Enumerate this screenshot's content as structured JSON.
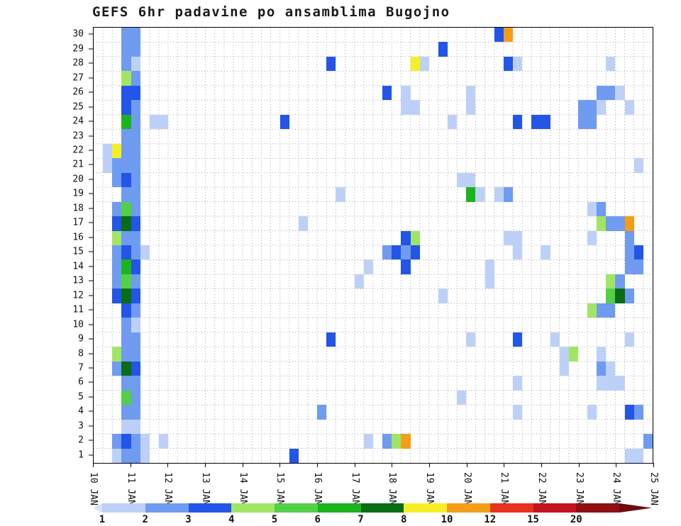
{
  "chart_data": {
    "type": "heatmap",
    "title": "GEFS 6hr padavine po ansamblima Bugojno",
    "x_axis": {
      "tick_labels": [
        "10 JAN",
        "11 JAN",
        "12 JAN",
        "13 JAN",
        "14 JAN",
        "15 JAN",
        "16 JAN",
        "17 JAN",
        "18 JAN",
        "19 JAN",
        "20 JAN",
        "21 JAN",
        "22 JAN",
        "23 JAN",
        "24 JAN",
        "25 JAN"
      ],
      "steps_per_day": 4,
      "n_cols": 60
    },
    "y_axis": {
      "tick_labels": [
        "30",
        "29",
        "28",
        "27",
        "26",
        "25",
        "24",
        "23",
        "22",
        "21",
        "20",
        "19",
        "18",
        "17",
        "16",
        "15",
        "14",
        "13",
        "12",
        "11",
        "10",
        "9",
        "8",
        "7",
        "6",
        "5",
        "4",
        "3",
        "2",
        "1"
      ],
      "n_rows": 30,
      "meaning": "ensemble member"
    },
    "legend": {
      "tick_labels": [
        "1",
        "2",
        "3",
        "4",
        "5",
        "6",
        "7",
        "8",
        "10",
        "12",
        "15",
        "20"
      ],
      "bin_values": [
        1,
        2,
        3,
        4,
        5,
        6,
        7,
        8,
        10,
        12,
        15,
        20
      ],
      "segment_colors": [
        "#bdd1f8",
        "#6f9bf0",
        "#2255e8",
        "#a0e664",
        "#52d048",
        "#1cb41e",
        "#0a6c14",
        "#f6ef26",
        "#f59d18",
        "#e8321e",
        "#c41420",
        "#8f0f14"
      ],
      "cap_left_color": "#d7e3fa",
      "cap_right_color": "#6e0a10"
    },
    "cells": [
      [
        30,
        3,
        2
      ],
      [
        30,
        4,
        2
      ],
      [
        30,
        43,
        3
      ],
      [
        30,
        44,
        10
      ],
      [
        29,
        3,
        2
      ],
      [
        29,
        4,
        2
      ],
      [
        29,
        37,
        3
      ],
      [
        28,
        3,
        2
      ],
      [
        28,
        4,
        1
      ],
      [
        28,
        25,
        3
      ],
      [
        28,
        34,
        8
      ],
      [
        28,
        35,
        1
      ],
      [
        28,
        44,
        3
      ],
      [
        28,
        45,
        1
      ],
      [
        28,
        55,
        1
      ],
      [
        27,
        3,
        4
      ],
      [
        27,
        4,
        2
      ],
      [
        26,
        3,
        3
      ],
      [
        26,
        4,
        3
      ],
      [
        26,
        31,
        3
      ],
      [
        26,
        33,
        1
      ],
      [
        26,
        40,
        1
      ],
      [
        26,
        54,
        2
      ],
      [
        26,
        55,
        2
      ],
      [
        26,
        56,
        1
      ],
      [
        25,
        3,
        3
      ],
      [
        25,
        4,
        2
      ],
      [
        25,
        33,
        1
      ],
      [
        25,
        34,
        1
      ],
      [
        25,
        40,
        1
      ],
      [
        25,
        52,
        2
      ],
      [
        25,
        53,
        2
      ],
      [
        25,
        54,
        1
      ],
      [
        25,
        57,
        1
      ],
      [
        24,
        3,
        6
      ],
      [
        24,
        4,
        2
      ],
      [
        24,
        6,
        1
      ],
      [
        24,
        7,
        1
      ],
      [
        24,
        20,
        3
      ],
      [
        24,
        38,
        1
      ],
      [
        24,
        45,
        3
      ],
      [
        24,
        47,
        3
      ],
      [
        24,
        48,
        3
      ],
      [
        24,
        52,
        2
      ],
      [
        24,
        53,
        2
      ],
      [
        23,
        3,
        2
      ],
      [
        23,
        4,
        2
      ],
      [
        22,
        1,
        1
      ],
      [
        22,
        2,
        8
      ],
      [
        22,
        3,
        2
      ],
      [
        22,
        4,
        2
      ],
      [
        21,
        1,
        1
      ],
      [
        21,
        2,
        2
      ],
      [
        21,
        3,
        2
      ],
      [
        21,
        4,
        2
      ],
      [
        21,
        58,
        1
      ],
      [
        20,
        2,
        2
      ],
      [
        20,
        3,
        3
      ],
      [
        20,
        4,
        2
      ],
      [
        20,
        39,
        1
      ],
      [
        20,
        40,
        1
      ],
      [
        19,
        3,
        2
      ],
      [
        19,
        4,
        2
      ],
      [
        19,
        26,
        1
      ],
      [
        19,
        40,
        6
      ],
      [
        19,
        41,
        1
      ],
      [
        19,
        43,
        1
      ],
      [
        19,
        44,
        2
      ],
      [
        18,
        2,
        2
      ],
      [
        18,
        3,
        5
      ],
      [
        18,
        4,
        2
      ],
      [
        18,
        53,
        1
      ],
      [
        18,
        54,
        2
      ],
      [
        17,
        2,
        3
      ],
      [
        17,
        3,
        7
      ],
      [
        17,
        4,
        3
      ],
      [
        17,
        22,
        1
      ],
      [
        17,
        54,
        4
      ],
      [
        17,
        55,
        2
      ],
      [
        17,
        56,
        2
      ],
      [
        17,
        57,
        10
      ],
      [
        16,
        2,
        4
      ],
      [
        16,
        3,
        2
      ],
      [
        16,
        4,
        2
      ],
      [
        16,
        33,
        3
      ],
      [
        16,
        34,
        4
      ],
      [
        16,
        44,
        1
      ],
      [
        16,
        45,
        1
      ],
      [
        16,
        53,
        1
      ],
      [
        16,
        57,
        2
      ],
      [
        15,
        2,
        2
      ],
      [
        15,
        3,
        3
      ],
      [
        15,
        4,
        2
      ],
      [
        15,
        5,
        1
      ],
      [
        15,
        31,
        2
      ],
      [
        15,
        32,
        3
      ],
      [
        15,
        33,
        2
      ],
      [
        15,
        34,
        3
      ],
      [
        15,
        45,
        1
      ],
      [
        15,
        48,
        1
      ],
      [
        15,
        57,
        2
      ],
      [
        15,
        58,
        3
      ],
      [
        14,
        2,
        2
      ],
      [
        14,
        3,
        6
      ],
      [
        14,
        4,
        3
      ],
      [
        14,
        29,
        1
      ],
      [
        14,
        33,
        3
      ],
      [
        14,
        42,
        1
      ],
      [
        14,
        57,
        2
      ],
      [
        14,
        58,
        2
      ],
      [
        13,
        2,
        2
      ],
      [
        13,
        3,
        5
      ],
      [
        13,
        4,
        2
      ],
      [
        13,
        28,
        1
      ],
      [
        13,
        42,
        1
      ],
      [
        13,
        55,
        4
      ],
      [
        13,
        56,
        2
      ],
      [
        12,
        2,
        3
      ],
      [
        12,
        3,
        7
      ],
      [
        12,
        4,
        3
      ],
      [
        12,
        37,
        1
      ],
      [
        12,
        55,
        5
      ],
      [
        12,
        56,
        7
      ],
      [
        12,
        57,
        2
      ],
      [
        11,
        3,
        3
      ],
      [
        11,
        4,
        2
      ],
      [
        11,
        53,
        4
      ],
      [
        11,
        54,
        2
      ],
      [
        11,
        55,
        2
      ],
      [
        10,
        3,
        2
      ],
      [
        10,
        4,
        1
      ],
      [
        9,
        3,
        2
      ],
      [
        9,
        4,
        2
      ],
      [
        9,
        25,
        3
      ],
      [
        9,
        40,
        1
      ],
      [
        9,
        45,
        3
      ],
      [
        9,
        49,
        1
      ],
      [
        9,
        57,
        1
      ],
      [
        8,
        2,
        4
      ],
      [
        8,
        3,
        2
      ],
      [
        8,
        4,
        2
      ],
      [
        8,
        50,
        1
      ],
      [
        8,
        51,
        4
      ],
      [
        8,
        54,
        1
      ],
      [
        7,
        2,
        2
      ],
      [
        7,
        3,
        7
      ],
      [
        7,
        4,
        3
      ],
      [
        7,
        50,
        1
      ],
      [
        7,
        54,
        2
      ],
      [
        7,
        55,
        1
      ],
      [
        6,
        3,
        2
      ],
      [
        6,
        4,
        2
      ],
      [
        6,
        45,
        1
      ],
      [
        6,
        54,
        1
      ],
      [
        6,
        55,
        1
      ],
      [
        6,
        56,
        1
      ],
      [
        5,
        3,
        5
      ],
      [
        5,
        4,
        2
      ],
      [
        5,
        39,
        1
      ],
      [
        4,
        3,
        2
      ],
      [
        4,
        4,
        2
      ],
      [
        4,
        24,
        2
      ],
      [
        4,
        45,
        1
      ],
      [
        4,
        53,
        1
      ],
      [
        4,
        57,
        3
      ],
      [
        4,
        58,
        2
      ],
      [
        3,
        3,
        1
      ],
      [
        3,
        4,
        1
      ],
      [
        2,
        2,
        2
      ],
      [
        2,
        3,
        3
      ],
      [
        2,
        4,
        2
      ],
      [
        2,
        5,
        1
      ],
      [
        2,
        7,
        1
      ],
      [
        2,
        29,
        1
      ],
      [
        2,
        31,
        2
      ],
      [
        2,
        32,
        4
      ],
      [
        2,
        33,
        10
      ],
      [
        2,
        59,
        2
      ],
      [
        1,
        2,
        1
      ],
      [
        1,
        3,
        2
      ],
      [
        1,
        4,
        2
      ],
      [
        1,
        5,
        1
      ],
      [
        1,
        21,
        3
      ],
      [
        1,
        57,
        1
      ],
      [
        1,
        58,
        1
      ]
    ]
  }
}
